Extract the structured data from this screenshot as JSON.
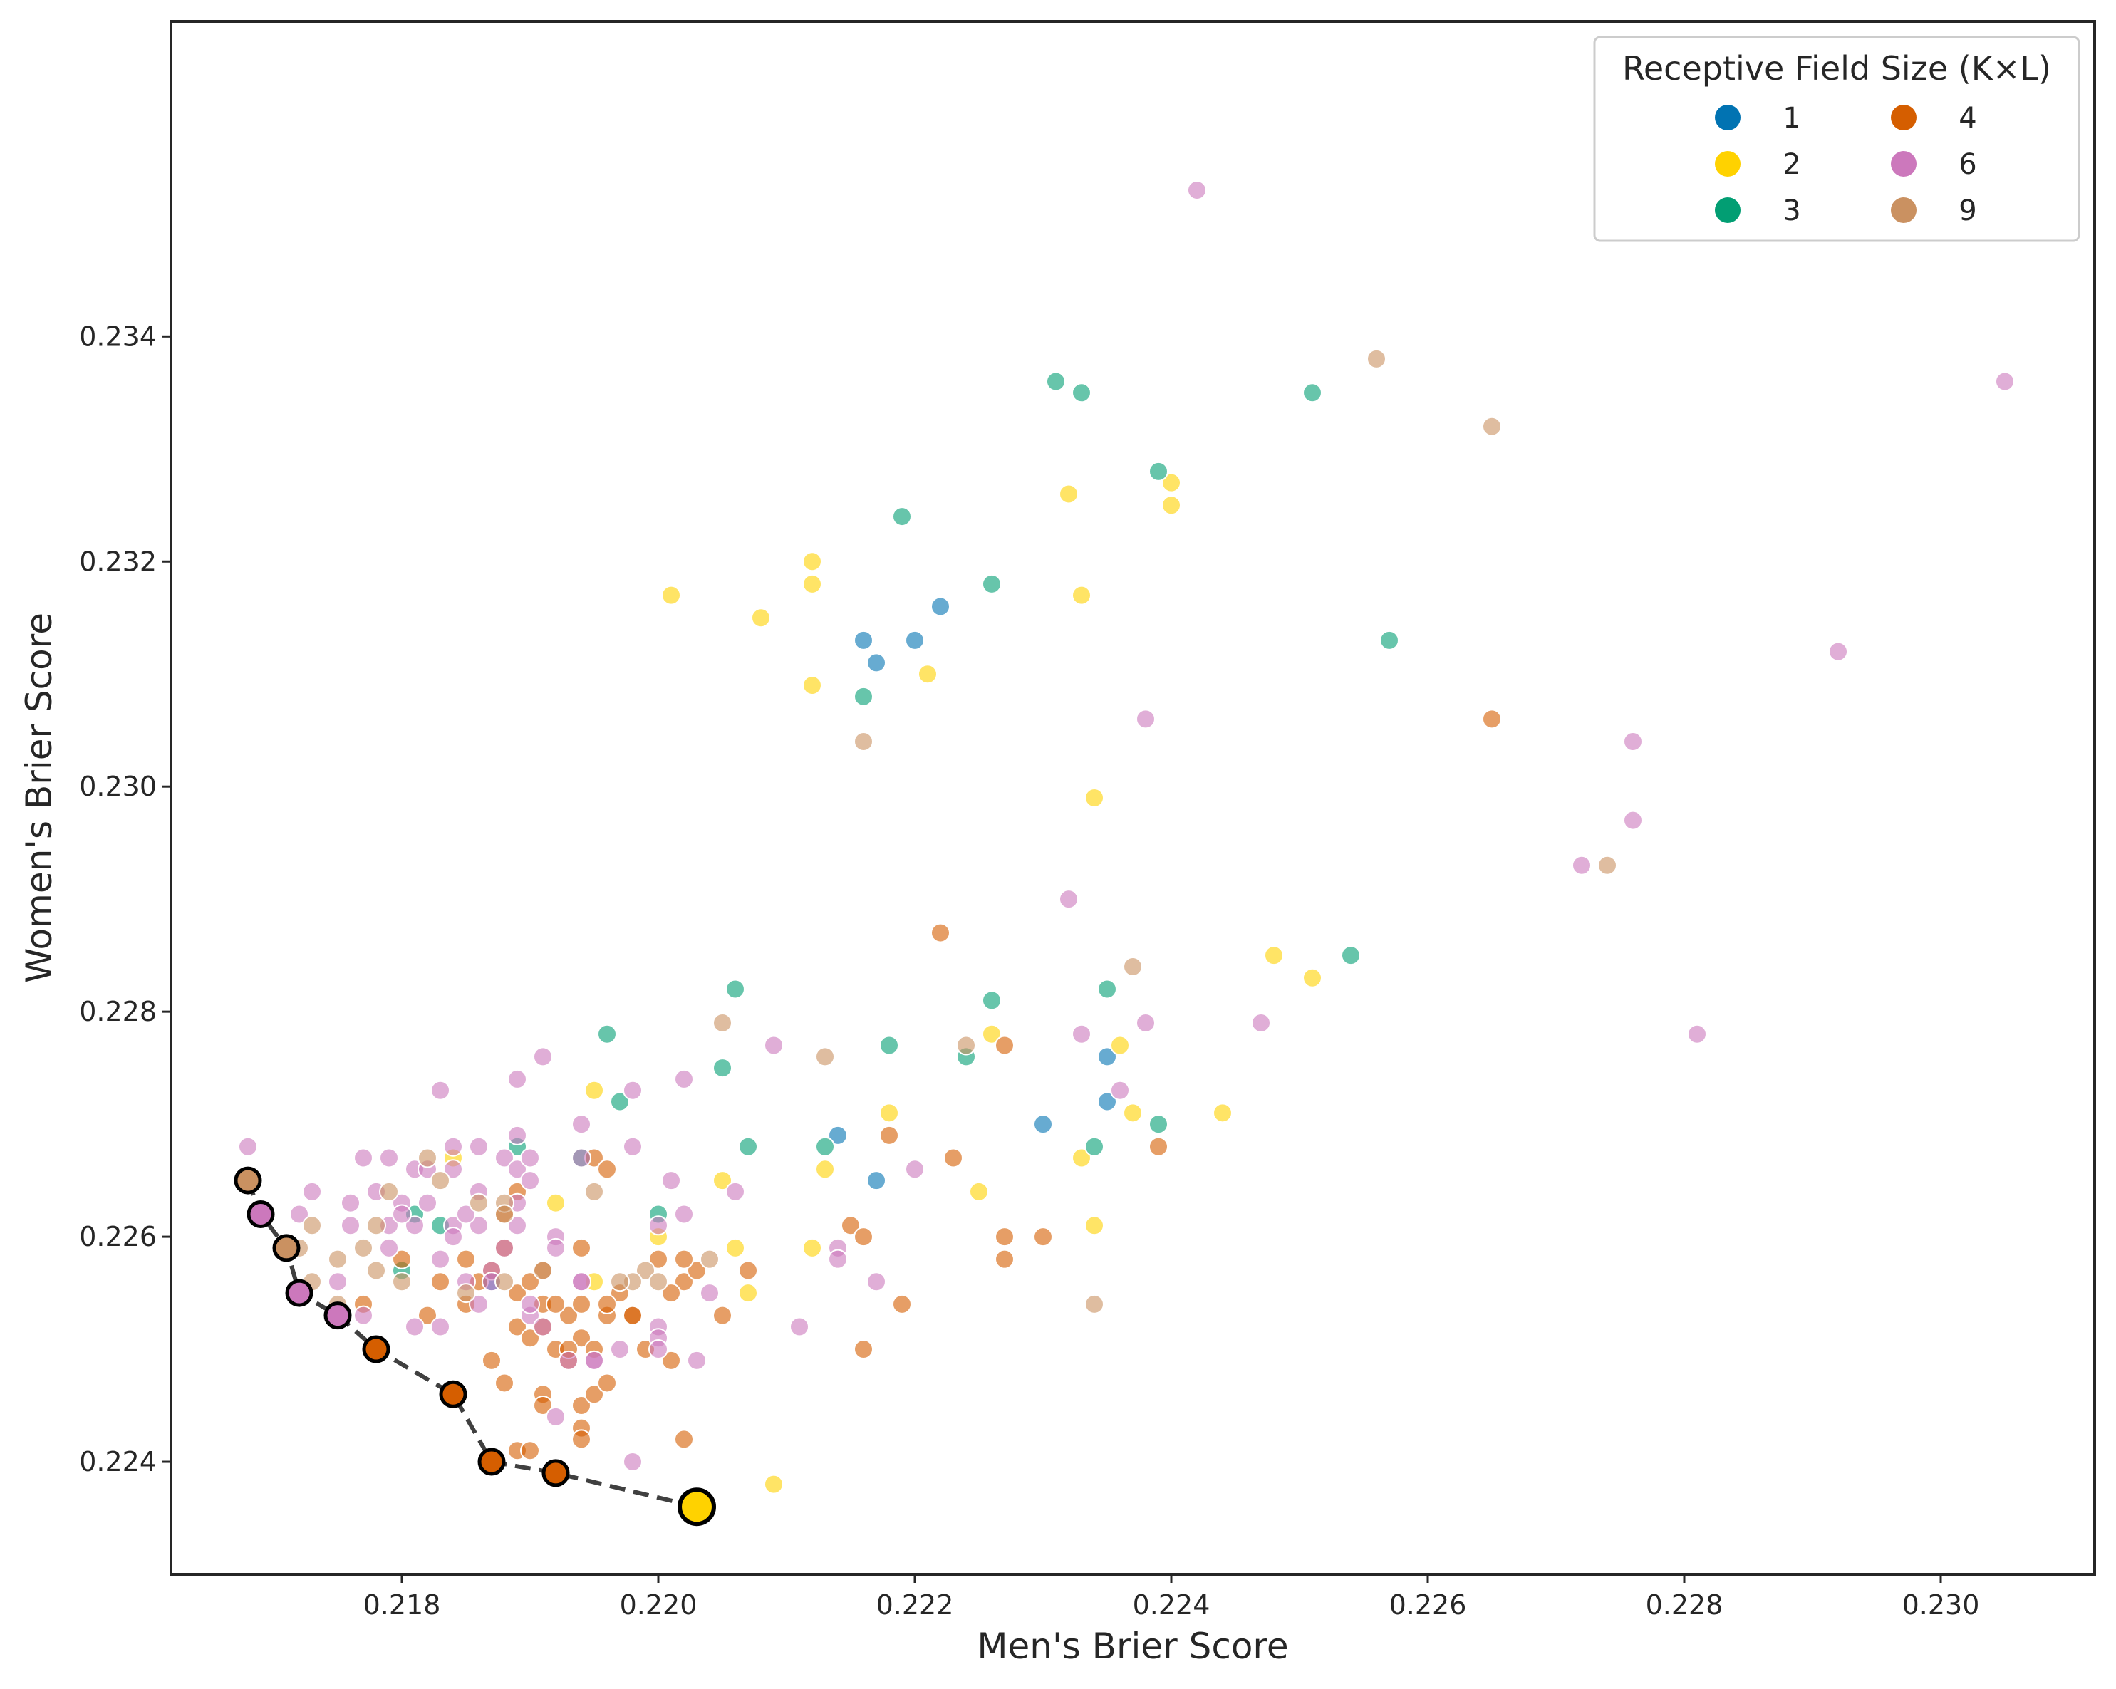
{
  "chart_data": {
    "type": "scatter",
    "title": "",
    "xlabel": "Men's Brier Score",
    "ylabel": "Women's Brier Score",
    "xlim": [
      0.2162,
      0.2312
    ],
    "ylim": [
      0.223,
      0.2368
    ],
    "xticks": [
      "0.218",
      "0.220",
      "0.222",
      "0.224",
      "0.226",
      "0.228",
      "0.230"
    ],
    "yticks": [
      "0.224",
      "0.226",
      "0.228",
      "0.230",
      "0.232",
      "0.234"
    ],
    "grid": false,
    "legend": {
      "title": "Receptive Field Size (K×L)",
      "placement": "top-right",
      "entries": [
        {
          "label": "1",
          "color": "#0173b2"
        },
        {
          "label": "2",
          "color": "#ffd200"
        },
        {
          "label": "3",
          "color": "#029e73"
        },
        {
          "label": "4",
          "color": "#d55e00"
        },
        {
          "label": "6",
          "color": "#cc78bc"
        },
        {
          "label": "9",
          "color": "#ca9161"
        }
      ]
    },
    "series": [
      {
        "name": "1",
        "color": "#0173b2",
        "points": [
          [
            0.2216,
            0.2313
          ],
          [
            0.2217,
            0.2311
          ],
          [
            0.222,
            0.2313
          ],
          [
            0.2222,
            0.2316
          ],
          [
            0.2214,
            0.2269
          ],
          [
            0.2217,
            0.2265
          ],
          [
            0.223,
            0.227
          ],
          [
            0.2235,
            0.2276
          ],
          [
            0.2235,
            0.2272
          ],
          [
            0.2187,
            0.2256
          ]
        ]
      },
      {
        "name": "2",
        "color": "#ffd200",
        "points": [
          [
            0.2203,
            0.2236
          ],
          [
            0.2201,
            0.2317
          ],
          [
            0.2208,
            0.2315
          ],
          [
            0.2212,
            0.232
          ],
          [
            0.2212,
            0.2318
          ],
          [
            0.2212,
            0.2309
          ],
          [
            0.2221,
            0.231
          ],
          [
            0.2232,
            0.2326
          ],
          [
            0.2233,
            0.2317
          ],
          [
            0.224,
            0.2327
          ],
          [
            0.224,
            0.2325
          ],
          [
            0.2234,
            0.2299
          ],
          [
            0.2248,
            0.2285
          ],
          [
            0.2251,
            0.2283
          ],
          [
            0.2226,
            0.2278
          ],
          [
            0.2236,
            0.2277
          ],
          [
            0.2237,
            0.2271
          ],
          [
            0.2244,
            0.2271
          ],
          [
            0.2233,
            0.2267
          ],
          [
            0.2218,
            0.2271
          ],
          [
            0.2213,
            0.2266
          ],
          [
            0.2225,
            0.2264
          ],
          [
            0.2234,
            0.2261
          ],
          [
            0.2212,
            0.2259
          ],
          [
            0.2206,
            0.2259
          ],
          [
            0.2207,
            0.2255
          ],
          [
            0.2205,
            0.2265
          ],
          [
            0.2209,
            0.2238
          ],
          [
            0.2195,
            0.2273
          ],
          [
            0.2192,
            0.2263
          ],
          [
            0.2195,
            0.2256
          ],
          [
            0.22,
            0.226
          ],
          [
            0.2184,
            0.2267
          ]
        ]
      },
      {
        "name": "3",
        "color": "#029e73",
        "points": [
          [
            0.2231,
            0.2336
          ],
          [
            0.2233,
            0.2335
          ],
          [
            0.2251,
            0.2335
          ],
          [
            0.2239,
            0.2328
          ],
          [
            0.2219,
            0.2324
          ],
          [
            0.2226,
            0.2318
          ],
          [
            0.2216,
            0.2308
          ],
          [
            0.2257,
            0.2313
          ],
          [
            0.2206,
            0.2282
          ],
          [
            0.2226,
            0.2281
          ],
          [
            0.2235,
            0.2282
          ],
          [
            0.2254,
            0.2285
          ],
          [
            0.2196,
            0.2278
          ],
          [
            0.2218,
            0.2277
          ],
          [
            0.2224,
            0.2276
          ],
          [
            0.2205,
            0.2275
          ],
          [
            0.2197,
            0.2272
          ],
          [
            0.2239,
            0.227
          ],
          [
            0.2234,
            0.2268
          ],
          [
            0.2207,
            0.2268
          ],
          [
            0.2213,
            0.2268
          ],
          [
            0.2189,
            0.2268
          ],
          [
            0.2194,
            0.2267
          ],
          [
            0.22,
            0.2262
          ],
          [
            0.2183,
            0.2261
          ],
          [
            0.2181,
            0.2262
          ],
          [
            0.218,
            0.2257
          ]
        ]
      },
      {
        "name": "4",
        "color": "#d55e00",
        "points": [
          [
            0.2265,
            0.2306
          ],
          [
            0.2222,
            0.2287
          ],
          [
            0.2227,
            0.2277
          ],
          [
            0.2218,
            0.2269
          ],
          [
            0.2223,
            0.2267
          ],
          [
            0.2239,
            0.2268
          ],
          [
            0.2215,
            0.2261
          ],
          [
            0.2216,
            0.226
          ],
          [
            0.2227,
            0.226
          ],
          [
            0.223,
            0.226
          ],
          [
            0.2227,
            0.2258
          ],
          [
            0.2219,
            0.2254
          ],
          [
            0.2216,
            0.225
          ],
          [
            0.2192,
            0.2239
          ],
          [
            0.2187,
            0.224
          ],
          [
            0.2184,
            0.2246
          ],
          [
            0.2178,
            0.225
          ],
          [
            0.2188,
            0.2247
          ],
          [
            0.2189,
            0.2241
          ],
          [
            0.219,
            0.2241
          ],
          [
            0.2194,
            0.2243
          ],
          [
            0.2194,
            0.2242
          ],
          [
            0.2202,
            0.2242
          ],
          [
            0.2187,
            0.2249
          ],
          [
            0.2185,
            0.2254
          ],
          [
            0.2187,
            0.2257
          ],
          [
            0.2189,
            0.2252
          ],
          [
            0.2189,
            0.2255
          ],
          [
            0.219,
            0.2251
          ],
          [
            0.2191,
            0.2252
          ],
          [
            0.2191,
            0.2246
          ],
          [
            0.2191,
            0.2245
          ],
          [
            0.2192,
            0.225
          ],
          [
            0.2193,
            0.2253
          ],
          [
            0.2193,
            0.2249
          ],
          [
            0.2194,
            0.2245
          ],
          [
            0.2195,
            0.2246
          ],
          [
            0.2196,
            0.2247
          ],
          [
            0.2196,
            0.2253
          ],
          [
            0.2198,
            0.2253
          ],
          [
            0.2199,
            0.225
          ],
          [
            0.2201,
            0.2249
          ],
          [
            0.2202,
            0.2256
          ],
          [
            0.2203,
            0.2257
          ],
          [
            0.2205,
            0.2253
          ],
          [
            0.2207,
            0.2257
          ],
          [
            0.22,
            0.2258
          ],
          [
            0.2202,
            0.2258
          ],
          [
            0.2191,
            0.2257
          ],
          [
            0.2194,
            0.2259
          ],
          [
            0.2195,
            0.2267
          ],
          [
            0.2196,
            0.2266
          ],
          [
            0.2197,
            0.2255
          ],
          [
            0.2185,
            0.2258
          ],
          [
            0.2183,
            0.2256
          ],
          [
            0.2182,
            0.2253
          ],
          [
            0.218,
            0.2258
          ],
          [
            0.2177,
            0.2254
          ],
          [
            0.2186,
            0.2256
          ],
          [
            0.2188,
            0.2262
          ],
          [
            0.2189,
            0.2264
          ],
          [
            0.2191,
            0.2254
          ],
          [
            0.2192,
            0.2254
          ],
          [
            0.2194,
            0.2254
          ],
          [
            0.2196,
            0.2254
          ],
          [
            0.2198,
            0.2253
          ],
          [
            0.2201,
            0.2255
          ],
          [
            0.2194,
            0.2251
          ],
          [
            0.219,
            0.2256
          ],
          [
            0.2188,
            0.2259
          ],
          [
            0.2193,
            0.225
          ],
          [
            0.2195,
            0.225
          ]
        ]
      },
      {
        "name": "6",
        "color": "#cc78bc",
        "points": [
          [
            0.2242,
            0.2353
          ],
          [
            0.2305,
            0.2336
          ],
          [
            0.2292,
            0.2312
          ],
          [
            0.2238,
            0.2306
          ],
          [
            0.2276,
            0.2304
          ],
          [
            0.2276,
            0.2297
          ],
          [
            0.2272,
            0.2293
          ],
          [
            0.2232,
            0.229
          ],
          [
            0.2281,
            0.2278
          ],
          [
            0.2247,
            0.2279
          ],
          [
            0.2238,
            0.2279
          ],
          [
            0.2233,
            0.2278
          ],
          [
            0.2236,
            0.2273
          ],
          [
            0.222,
            0.2266
          ],
          [
            0.2209,
            0.2277
          ],
          [
            0.2206,
            0.2264
          ],
          [
            0.2217,
            0.2256
          ],
          [
            0.2214,
            0.2259
          ],
          [
            0.2214,
            0.2258
          ],
          [
            0.2211,
            0.2252
          ],
          [
            0.2204,
            0.2255
          ],
          [
            0.2203,
            0.2249
          ],
          [
            0.2198,
            0.224
          ],
          [
            0.22,
            0.2252
          ],
          [
            0.22,
            0.2251
          ],
          [
            0.22,
            0.225
          ],
          [
            0.2202,
            0.2262
          ],
          [
            0.2202,
            0.2274
          ],
          [
            0.22,
            0.2261
          ],
          [
            0.2201,
            0.2265
          ],
          [
            0.2198,
            0.2273
          ],
          [
            0.2198,
            0.2268
          ],
          [
            0.2197,
            0.225
          ],
          [
            0.2195,
            0.2249
          ],
          [
            0.2194,
            0.227
          ],
          [
            0.2191,
            0.2276
          ],
          [
            0.2189,
            0.2274
          ],
          [
            0.2189,
            0.2269
          ],
          [
            0.2188,
            0.2267
          ],
          [
            0.2189,
            0.2266
          ],
          [
            0.2189,
            0.2263
          ],
          [
            0.2186,
            0.2268
          ],
          [
            0.2183,
            0.2273
          ],
          [
            0.2181,
            0.2266
          ],
          [
            0.2179,
            0.2267
          ],
          [
            0.2177,
            0.2267
          ],
          [
            0.2176,
            0.2263
          ],
          [
            0.2173,
            0.2264
          ],
          [
            0.2172,
            0.2262
          ],
          [
            0.2168,
            0.2268
          ],
          [
            0.2175,
            0.2256
          ],
          [
            0.2177,
            0.2253
          ],
          [
            0.218,
            0.2263
          ],
          [
            0.2181,
            0.2261
          ],
          [
            0.2184,
            0.2268
          ],
          [
            0.2184,
            0.2266
          ],
          [
            0.2184,
            0.2261
          ],
          [
            0.2183,
            0.2258
          ],
          [
            0.2186,
            0.2261
          ],
          [
            0.2186,
            0.2264
          ],
          [
            0.2187,
            0.2257
          ],
          [
            0.2188,
            0.2259
          ],
          [
            0.2189,
            0.2261
          ],
          [
            0.219,
            0.2265
          ],
          [
            0.219,
            0.2267
          ],
          [
            0.219,
            0.2253
          ],
          [
            0.2191,
            0.2252
          ],
          [
            0.2192,
            0.226
          ],
          [
            0.2192,
            0.2259
          ],
          [
            0.2193,
            0.2249
          ],
          [
            0.2194,
            0.2256
          ],
          [
            0.2195,
            0.2249
          ],
          [
            0.2194,
            0.2267
          ],
          [
            0.2183,
            0.2252
          ],
          [
            0.2176,
            0.2261
          ],
          [
            0.2179,
            0.2261
          ],
          [
            0.218,
            0.2262
          ],
          [
            0.2182,
            0.2263
          ],
          [
            0.2179,
            0.2259
          ],
          [
            0.2185,
            0.2256
          ],
          [
            0.2187,
            0.2256
          ],
          [
            0.2186,
            0.2254
          ],
          [
            0.2192,
            0.2244
          ],
          [
            0.2194,
            0.2256
          ],
          [
            0.219,
            0.2254
          ],
          [
            0.2181,
            0.2252
          ],
          [
            0.2185,
            0.2262
          ],
          [
            0.2184,
            0.226
          ],
          [
            0.2178,
            0.2264
          ],
          [
            0.2182,
            0.2266
          ]
        ]
      },
      {
        "name": "9",
        "color": "#ca9161",
        "points": [
          [
            0.2256,
            0.2338
          ],
          [
            0.2265,
            0.2332
          ],
          [
            0.2274,
            0.2293
          ],
          [
            0.2237,
            0.2284
          ],
          [
            0.2216,
            0.2304
          ],
          [
            0.2205,
            0.2279
          ],
          [
            0.2213,
            0.2276
          ],
          [
            0.2224,
            0.2277
          ],
          [
            0.2234,
            0.2254
          ],
          [
            0.2204,
            0.2258
          ],
          [
            0.2199,
            0.2257
          ],
          [
            0.2198,
            0.2256
          ],
          [
            0.2195,
            0.2264
          ],
          [
            0.2188,
            0.2263
          ],
          [
            0.2188,
            0.2262
          ],
          [
            0.2186,
            0.2263
          ],
          [
            0.2183,
            0.2265
          ],
          [
            0.2182,
            0.2267
          ],
          [
            0.2179,
            0.2264
          ],
          [
            0.2178,
            0.2261
          ],
          [
            0.2177,
            0.2259
          ],
          [
            0.2175,
            0.2258
          ],
          [
            0.2173,
            0.2261
          ],
          [
            0.2172,
            0.2259
          ],
          [
            0.2173,
            0.2256
          ],
          [
            0.2175,
            0.2254
          ],
          [
            0.2178,
            0.2257
          ],
          [
            0.2185,
            0.2255
          ],
          [
            0.2188,
            0.2256
          ],
          [
            0.2191,
            0.2257
          ],
          [
            0.2197,
            0.2256
          ],
          [
            0.22,
            0.2256
          ],
          [
            0.218,
            0.2256
          ]
        ]
      }
    ],
    "pareto_front": {
      "style": "dashed",
      "color": "#404040",
      "points": [
        {
          "x": 0.2168,
          "y": 0.2265,
          "group": "9"
        },
        {
          "x": 0.2169,
          "y": 0.2262,
          "group": "6"
        },
        {
          "x": 0.2171,
          "y": 0.2259,
          "group": "9"
        },
        {
          "x": 0.2172,
          "y": 0.2255,
          "group": "6"
        },
        {
          "x": 0.2175,
          "y": 0.2253,
          "group": "6"
        },
        {
          "x": 0.2178,
          "y": 0.225,
          "group": "4"
        },
        {
          "x": 0.2184,
          "y": 0.2246,
          "group": "4"
        },
        {
          "x": 0.2187,
          "y": 0.224,
          "group": "4"
        },
        {
          "x": 0.2192,
          "y": 0.2239,
          "group": "4"
        },
        {
          "x": 0.2203,
          "y": 0.2236,
          "group": "2",
          "highlight": true
        }
      ]
    }
  }
}
